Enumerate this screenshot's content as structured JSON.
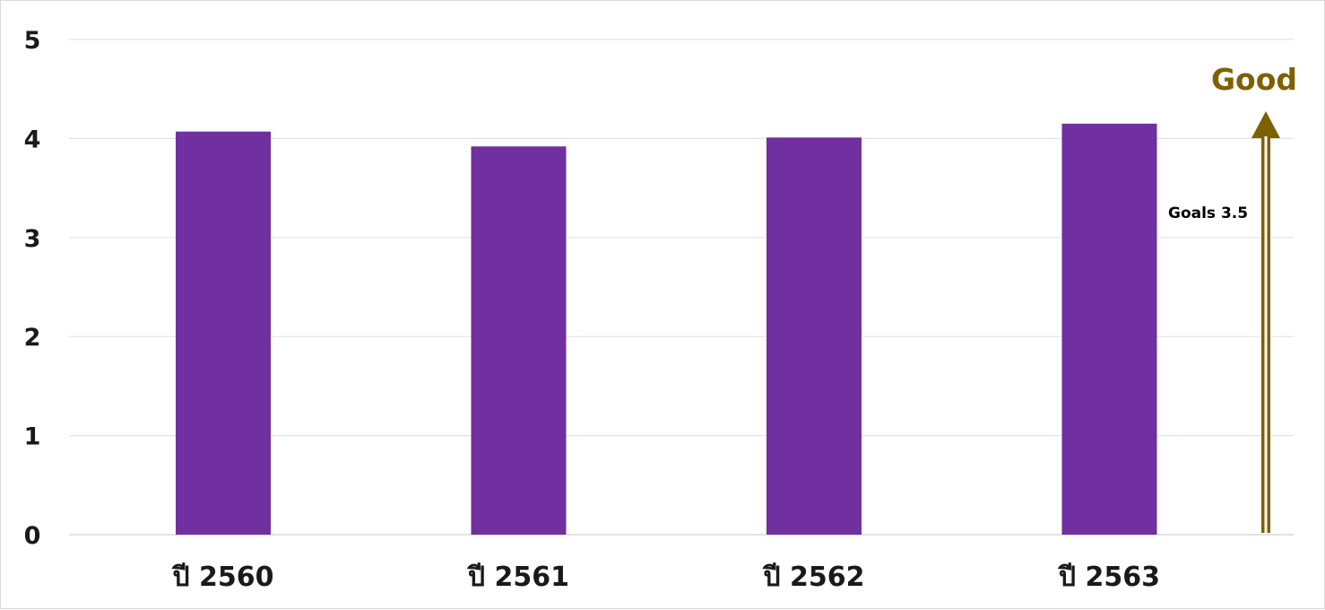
{
  "chart_data": {
    "type": "bar",
    "categories": [
      "ปี 2560",
      "ปี 2561",
      "ปี 2562",
      "ปี 2563"
    ],
    "values": [
      4.07,
      3.92,
      4.01,
      4.15
    ],
    "ylim": [
      0,
      5
    ],
    "yticks": [
      "0",
      "1",
      "2",
      "3",
      "4",
      "5"
    ],
    "grid": true,
    "bar_color": "#7030a0",
    "annotations": {
      "arrow_label": "Good",
      "arrow_color": "#7f6000",
      "goal_label": "Goals 3.5"
    }
  }
}
